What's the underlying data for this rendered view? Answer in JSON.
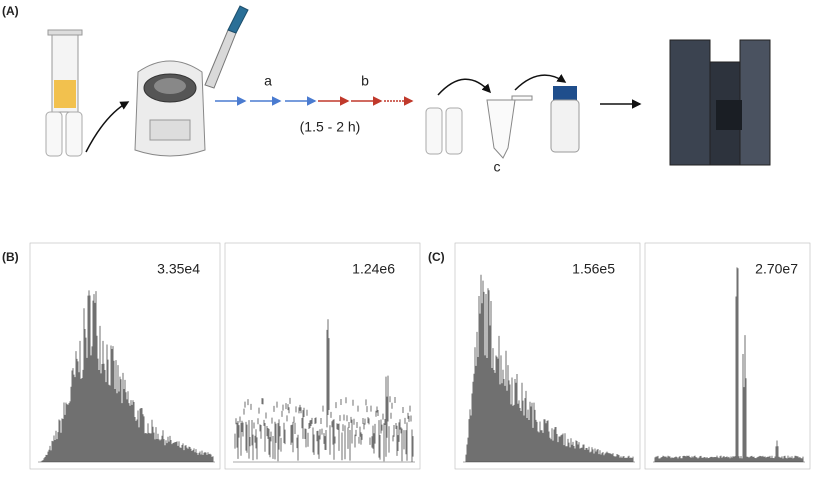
{
  "panel_a": {
    "label": "(A)",
    "step_a": "a",
    "step_b": "b",
    "duration": "(1.5 - 2 h)",
    "step_c": "c"
  },
  "panel_b": {
    "label": "(B)",
    "spectra": [
      {
        "intensity": "3.35e4"
      },
      {
        "intensity": "1.24e6"
      }
    ]
  },
  "panel_c": {
    "label": "(C)",
    "spectra": [
      {
        "intensity": "1.56e5"
      },
      {
        "intensity": "2.70e7"
      }
    ]
  }
}
